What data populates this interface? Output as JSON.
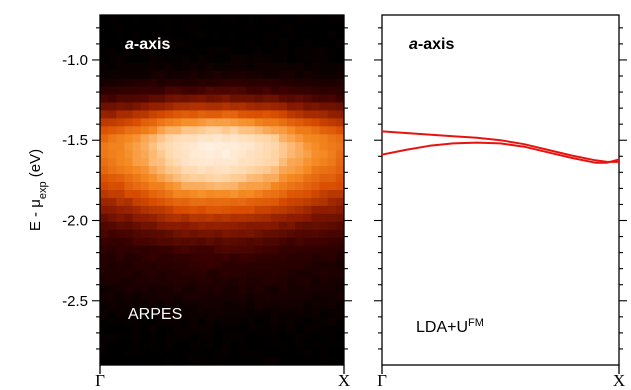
{
  "chart_data": [
    {
      "type": "heatmap",
      "panel_label_italic": "a",
      "panel_label_rest": "-axis",
      "method_label": "ARPES",
      "ylabel_main": "E - μ",
      "ylabel_sub": "exp",
      "ylabel_unit": " (eV)",
      "yticks": [
        "-1.0",
        "-1.5",
        "-2.0",
        "-2.5"
      ],
      "ytick_values": [
        -1.0,
        -1.5,
        -2.0,
        -2.5
      ],
      "ylim": [
        -2.9,
        -0.72
      ],
      "xticks": [
        "Γ",
        "X"
      ],
      "band_center_y": -1.55,
      "band_peak_x_fraction": 0.48,
      "colormap": [
        "#000000",
        "#3a0000",
        "#8a1a00",
        "#d84c00",
        "#f58a22",
        "#ffd2a0",
        "#fff6ee"
      ]
    },
    {
      "type": "line",
      "panel_label_italic": "a",
      "panel_label_rest": "-axis",
      "method_label_main": "LDA+U",
      "method_label_sup": "FM",
      "yticks_values": [
        -1.0,
        -1.5,
        -2.0,
        -2.5
      ],
      "ylim": [
        -2.9,
        -0.72
      ],
      "xticks": [
        "Γ",
        "X"
      ],
      "xlim": [
        0,
        1
      ],
      "line_color": "#e8130f",
      "series": [
        {
          "x": [
            0,
            0.1,
            0.2,
            0.3,
            0.4,
            0.5,
            0.6,
            0.7,
            0.8,
            0.9,
            0.95,
            1.0
          ],
          "values": [
            -1.445,
            -1.455,
            -1.465,
            -1.475,
            -1.485,
            -1.5,
            -1.525,
            -1.56,
            -1.595,
            -1.625,
            -1.635,
            -1.635
          ]
        },
        {
          "x": [
            0,
            0.1,
            0.2,
            0.3,
            0.4,
            0.5,
            0.6,
            0.7,
            0.8,
            0.9,
            0.95,
            1.0
          ],
          "values": [
            -1.59,
            -1.56,
            -1.535,
            -1.52,
            -1.515,
            -1.52,
            -1.54,
            -1.575,
            -1.61,
            -1.64,
            -1.64,
            -1.62
          ]
        }
      ]
    }
  ]
}
